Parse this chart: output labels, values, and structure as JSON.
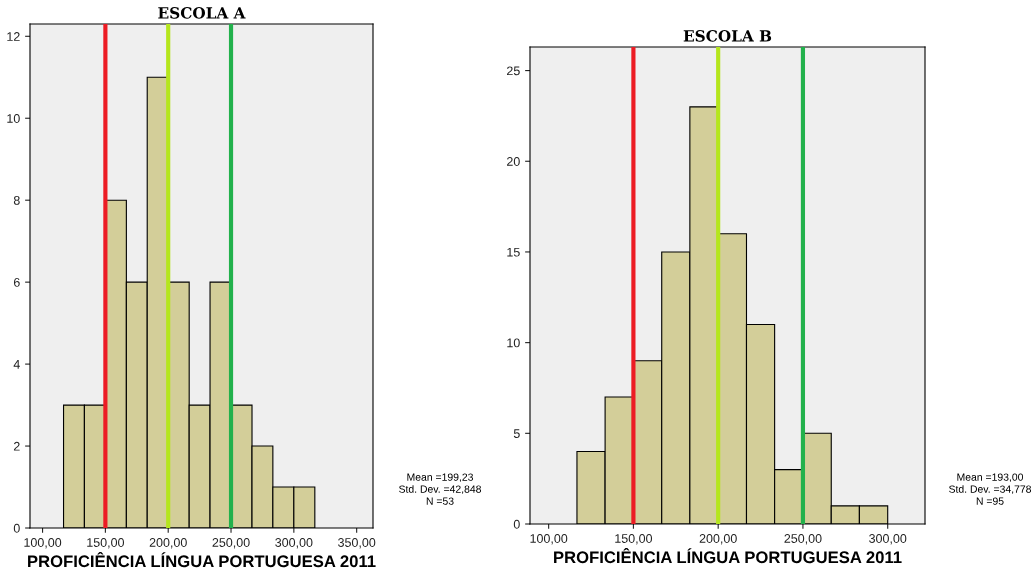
{
  "chart_data": [
    {
      "type": "histogram",
      "title": "ESCOLA A",
      "xlabel": "PROFICIÊNCIA LÍNGUA PORTUGUESA 2011",
      "bins": [
        116.7,
        133.3,
        150,
        166.7,
        183.3,
        200,
        216.7,
        233.3,
        250,
        266.7,
        283.3,
        300,
        316.7
      ],
      "values": [
        3,
        3,
        8,
        6,
        11,
        6,
        3,
        6,
        3,
        2,
        1,
        1
      ],
      "color": "#d3ce99",
      "xlim": [
        90,
        363
      ],
      "xticks": [
        {
          "value": 100,
          "label": "100,00"
        },
        {
          "value": 150,
          "label": "150,00"
        },
        {
          "value": 200,
          "label": "200,00"
        },
        {
          "value": 250,
          "label": "250,00"
        },
        {
          "value": 300,
          "label": "300,00"
        },
        {
          "value": 350,
          "label": "350,00"
        }
      ],
      "ylim": [
        0,
        12.3
      ],
      "yticks": [
        0,
        2,
        4,
        6,
        8,
        10,
        12
      ],
      "grid": false,
      "legend": false,
      "ref_lines": [
        {
          "axis": "x",
          "value": 150,
          "color": "#ec1c24"
        },
        {
          "axis": "x",
          "value": 200,
          "color": "#b5e61d"
        },
        {
          "axis": "x",
          "value": 250,
          "color": "#22b14c"
        }
      ],
      "annotations": [
        "Mean =199,23",
        "Std. Dev. =42,848",
        "N =53"
      ]
    },
    {
      "type": "histogram",
      "title": "ESCOLA B",
      "xlabel": "PROFICIÊNCIA LÍNGUA PORTUGUESA 2011",
      "bins": [
        116.7,
        133.3,
        150,
        166.7,
        183.3,
        200,
        216.7,
        233.3,
        250,
        266.7,
        283.3,
        300
      ],
      "values": [
        4,
        7,
        9,
        15,
        23,
        16,
        11,
        3,
        5,
        1,
        1
      ],
      "color": "#d3ce99",
      "xlim": [
        89,
        322
      ],
      "xticks": [
        {
          "value": 100,
          "label": "100,00"
        },
        {
          "value": 150,
          "label": "150,00"
        },
        {
          "value": 200,
          "label": "200,00"
        },
        {
          "value": 250,
          "label": "250,00"
        },
        {
          "value": 300,
          "label": "300,00"
        }
      ],
      "ylim": [
        0,
        26.3
      ],
      "yticks": [
        0,
        5,
        10,
        15,
        20,
        25
      ],
      "grid": false,
      "legend": false,
      "ref_lines": [
        {
          "axis": "x",
          "value": 150,
          "color": "#ec1c24"
        },
        {
          "axis": "x",
          "value": 200,
          "color": "#b5e61d"
        },
        {
          "axis": "x",
          "value": 250,
          "color": "#22b14c"
        }
      ],
      "annotations": [
        "Mean =193,00",
        "Std. Dev. =34,778",
        "N =95"
      ]
    }
  ]
}
